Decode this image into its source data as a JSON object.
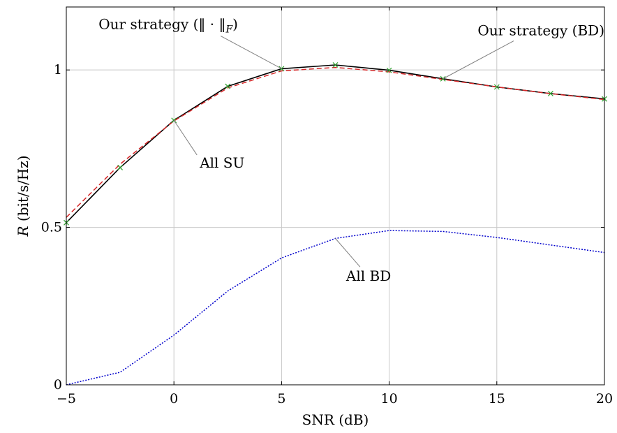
{
  "chart_data": {
    "type": "line",
    "xlabel": "SNR (dB)",
    "ylabel": "(bit/s/Hz)",
    "ylabel_symbol": "R",
    "xlim": [
      -5,
      20
    ],
    "ylim": [
      0,
      1.2
    ],
    "grid": true,
    "x_ticks": [
      -5,
      0,
      5,
      10,
      15,
      20
    ],
    "x_tick_labels": [
      "−5",
      "0",
      "5",
      "10",
      "15",
      "20"
    ],
    "y_ticks": [
      0,
      0.5,
      1
    ],
    "y_tick_labels": [
      "0",
      "0.5",
      "1"
    ],
    "x": [
      -5,
      -2.5,
      0,
      2.5,
      5,
      7.5,
      10,
      12.5,
      15,
      17.5,
      20
    ],
    "series": [
      {
        "name": "Our strategy (‖·‖_F)",
        "color": "#000000",
        "style": "solid",
        "marker": "none",
        "values": [
          0.515,
          0.69,
          0.84,
          0.948,
          1.004,
          1.016,
          0.999,
          0.972,
          0.946,
          0.925,
          0.908
        ]
      },
      {
        "name": "Our strategy (BD)",
        "color": "#d62728",
        "style": "dashed",
        "marker": "none",
        "values": [
          0.532,
          0.701,
          0.838,
          0.943,
          0.997,
          1.008,
          0.994,
          0.97,
          0.946,
          0.925,
          0.906
        ]
      },
      {
        "name": "All SU",
        "color": "#2ca02c",
        "style": "none",
        "marker": "x",
        "values": [
          0.515,
          0.69,
          0.84,
          0.948,
          1.004,
          1.016,
          0.999,
          0.972,
          0.946,
          0.925,
          0.908
        ]
      },
      {
        "name": "All BD",
        "color": "#0000cc",
        "style": "dotted",
        "marker": "none",
        "values": [
          0.0,
          0.04,
          0.158,
          0.298,
          0.403,
          0.465,
          0.49,
          0.487,
          0.468,
          0.444,
          0.42
        ]
      }
    ],
    "annotations": [
      {
        "text": "Our strategy (‖ · ‖",
        "sub": "F",
        "close": ")",
        "point": [
          5,
          1.004
        ],
        "text_pos": [
          -3.5,
          1.13
        ],
        "anchor": "start"
      },
      {
        "text": "Our strategy (BD)",
        "point": [
          12.5,
          0.972
        ],
        "text_pos": [
          20,
          1.11
        ],
        "anchor": "end"
      },
      {
        "text": "All SU",
        "point": [
          0,
          0.84
        ],
        "text_pos": [
          1.2,
          0.69
        ],
        "anchor": "start"
      },
      {
        "text": "All BD",
        "point": [
          7.5,
          0.465
        ],
        "text_pos": [
          8,
          0.33
        ],
        "anchor": "start"
      }
    ]
  }
}
